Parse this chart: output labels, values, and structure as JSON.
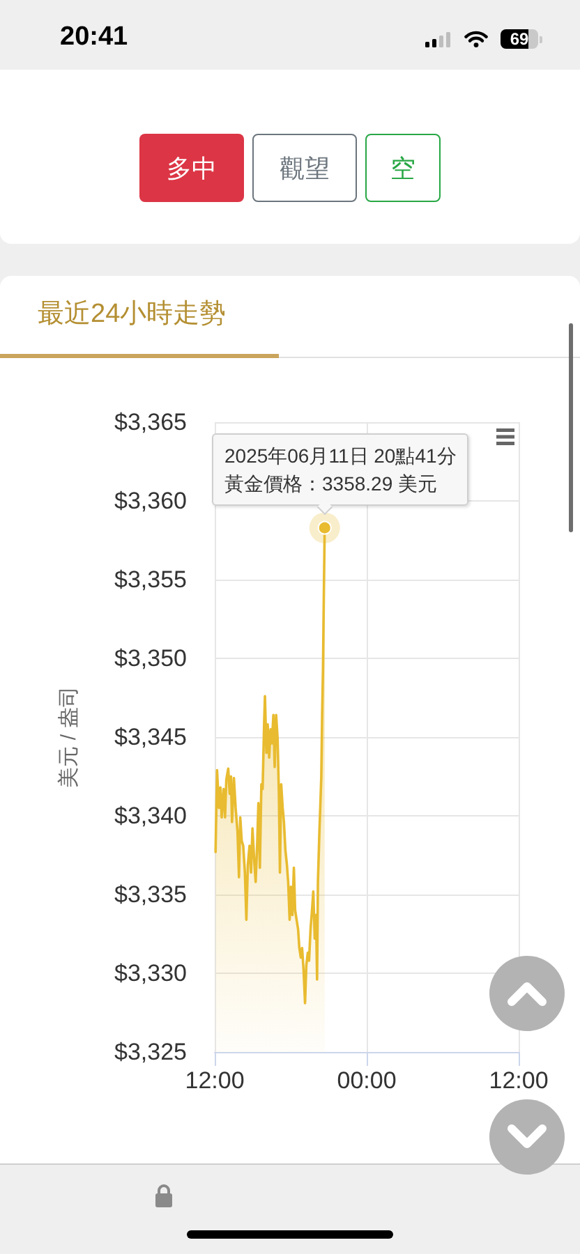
{
  "chart_data": {
    "type": "area",
    "title": "最近24小時走勢",
    "ylabel": "美元 / 盎司",
    "x": [
      "2025-06-11T12:04",
      "2025-06-11T12:11",
      "2025-06-11T12:20",
      "2025-06-11T12:27",
      "2025-06-11T12:33",
      "2025-06-11T12:42",
      "2025-06-11T12:49",
      "2025-06-11T12:55",
      "2025-06-11T13:04",
      "2025-06-11T13:11",
      "2025-06-11T13:17",
      "2025-06-11T13:22",
      "2025-06-11T13:31",
      "2025-06-11T13:39",
      "2025-06-11T13:48",
      "2025-06-11T13:55",
      "2025-06-11T14:01",
      "2025-06-11T14:08",
      "2025-06-11T14:15",
      "2025-06-11T14:23",
      "2025-06-11T14:30",
      "2025-06-11T14:37",
      "2025-06-11T14:45",
      "2025-06-11T14:52",
      "2025-06-11T14:59",
      "2025-06-11T15:07",
      "2025-06-11T15:14",
      "2025-06-11T15:21",
      "2025-06-11T15:27",
      "2025-06-11T15:34",
      "2025-06-11T15:41",
      "2025-06-11T15:47",
      "2025-06-11T15:54",
      "2025-06-11T15:58",
      "2025-06-11T16:05",
      "2025-06-11T16:11",
      "2025-06-11T16:18",
      "2025-06-11T16:25",
      "2025-06-11T16:31",
      "2025-06-11T16:38",
      "2025-06-11T16:44",
      "2025-06-11T16:51",
      "2025-06-11T16:58",
      "2025-06-11T17:04",
      "2025-06-11T17:09",
      "2025-06-11T17:15",
      "2025-06-11T17:22",
      "2025-06-11T17:28",
      "2025-06-11T17:35",
      "2025-06-11T17:42",
      "2025-06-11T17:48",
      "2025-06-11T17:55",
      "2025-06-11T18:01",
      "2025-06-11T18:08",
      "2025-06-11T18:15",
      "2025-06-11T18:21",
      "2025-06-11T18:28",
      "2025-06-11T18:35",
      "2025-06-11T18:41",
      "2025-06-11T18:48",
      "2025-06-11T18:54",
      "2025-06-11T19:01",
      "2025-06-11T19:08",
      "2025-06-11T19:14",
      "2025-06-11T19:21",
      "2025-06-11T19:27",
      "2025-06-11T19:34",
      "2025-06-11T19:41",
      "2025-06-11T19:47",
      "2025-06-11T19:54",
      "2025-06-11T20:00",
      "2025-06-11T20:05",
      "2025-06-11T20:09",
      "2025-06-11T20:16",
      "2025-06-11T20:20",
      "2025-06-11T20:25",
      "2025-06-11T20:29",
      "2025-06-11T20:33",
      "2025-06-11T20:37",
      "2025-06-11T20:41"
    ],
    "values": [
      3337.7,
      3342.9,
      3340.5,
      3341.8,
      3339.9,
      3341.7,
      3339.9,
      3342.3,
      3343.0,
      3341.4,
      3342.5,
      3339.6,
      3342.4,
      3340.5,
      3339.0,
      3336.1,
      3339.9,
      3338.4,
      3338.1,
      3336.4,
      3333.4,
      3336.9,
      3338.1,
      3336.4,
      3339.2,
      3337.2,
      3335.8,
      3338.1,
      3340.8,
      3336.7,
      3342.0,
      3341.7,
      3345.8,
      3347.6,
      3344.0,
      3345.8,
      3343.7,
      3345.5,
      3344.6,
      3346.4,
      3343.1,
      3346.4,
      3344.9,
      3341.4,
      3336.4,
      3342.0,
      3340.5,
      3339.6,
      3337.8,
      3336.9,
      3335.8,
      3333.4,
      3335.5,
      3333.7,
      3336.7,
      3334.0,
      3333.4,
      3332.8,
      3331.6,
      3331.0,
      3331.6,
      3330.2,
      3328.1,
      3330.5,
      3331.3,
      3330.8,
      3332.8,
      3334.0,
      3335.2,
      3332.2,
      3333.7,
      3329.6,
      3335.8,
      3339.0,
      3340.5,
      3342.5,
      3346.4,
      3349.3,
      3354.0,
      3358.29
    ],
    "color": "#e8bb30",
    "xlim": [
      "2025-06-11T12:00",
      "2025-06-12T12:00"
    ],
    "xticks": [
      {
        "value": "2025-06-11T12:00",
        "label": "12:00"
      },
      {
        "value": "2025-06-12T00:00",
        "label": "00:00"
      },
      {
        "value": "2025-06-12T12:00",
        "label": "12:00"
      }
    ],
    "ylim": [
      3325,
      3365
    ],
    "yticks": [
      {
        "value": 3325,
        "label": "$3,325"
      },
      {
        "value": 3330,
        "label": "$3,330"
      },
      {
        "value": 3335,
        "label": "$3,335"
      },
      {
        "value": 3340,
        "label": "$3,340"
      },
      {
        "value": 3345,
        "label": "$3,345"
      },
      {
        "value": 3350,
        "label": "$3,350"
      },
      {
        "value": 3355,
        "label": "$3,355"
      },
      {
        "value": 3360,
        "label": "$3,360"
      },
      {
        "value": 3365,
        "label": "$3,365"
      }
    ],
    "grid": true,
    "marker": "none",
    "annotations": [
      "20:41",
      "69",
      "多中",
      "觀望",
      "空",
      "2025年06月11日 20點41分",
      {
        "text": "黃金價格：3358.29 美元",
        "x": "2025-06-11T20:41",
        "y": 3358.29
      }
    ]
  }
}
